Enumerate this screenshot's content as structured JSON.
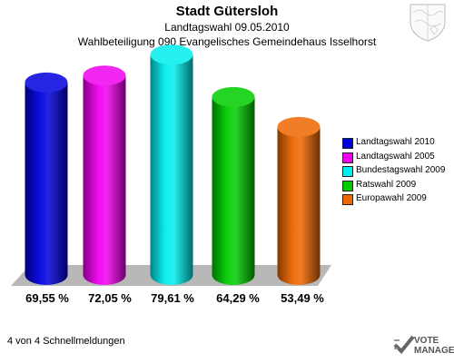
{
  "header": {
    "title": "Stadt Gütersloh",
    "subtitle": "Landtagswahl 09.05.2010",
    "subtitle2": "Wahlbeteiligung 090 Evangelisches Gemeindehaus Isselhorst"
  },
  "chart_data": {
    "type": "bar",
    "categories": [
      "Landtagswahl 2010",
      "Landtagswahl 2005",
      "Bundestagswahl 2009",
      "Ratswahl 2009",
      "Europawahl 2009"
    ],
    "values": [
      69.55,
      72.05,
      79.61,
      64.29,
      53.49
    ],
    "value_labels": [
      "69,55 %",
      "72,05 %",
      "79,61 %",
      "64,29 %",
      "53,49 %"
    ],
    "colors": [
      "#0000dd",
      "#ee00ee",
      "#00eeee",
      "#00cc00",
      "#ee6600"
    ],
    "legend": [
      "Landtagswahl 2010",
      "Landtagswahl 2005",
      "Bundestagswahl 2009",
      "Ratswahl 2009",
      "Europawahl 2009"
    ],
    "legend_position": "right",
    "grid": false
  },
  "footer": {
    "text": "4 von 4 Schnellmeldungen"
  },
  "branding": {
    "logo_text_1": "VOTE",
    "logo_text_2": "MANAGER",
    "crest_icon": "coat-of-arms-icon",
    "logo_icon": "votemanager-icon"
  }
}
